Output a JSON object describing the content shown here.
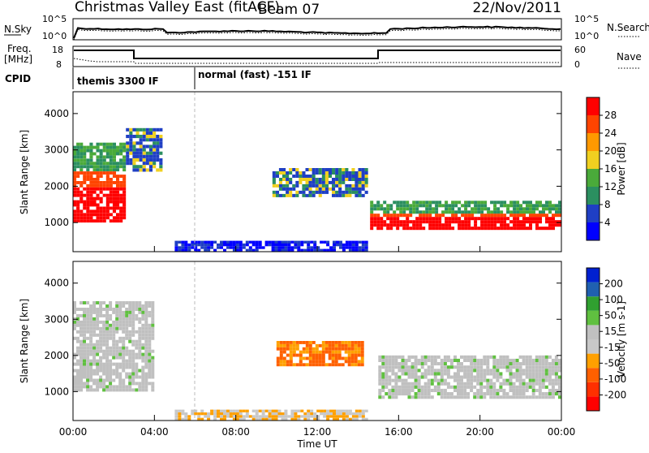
{
  "header": {
    "station": "Christmas Valley East (fitACF)",
    "beam": "Beam 07",
    "date": "22/Nov/2011"
  },
  "nsky_panel": {
    "left_label": "N.Sky",
    "left_ticks": [
      "10^5",
      "10^0"
    ],
    "right_label": "N.Search",
    "right_ticks": [
      "10^5",
      "10^0"
    ]
  },
  "freq_panel": {
    "left_label_1": "Freq.",
    "left_label_2": "[MHz]",
    "left_ticks": [
      "18",
      "8"
    ],
    "right_label": "Nave",
    "right_ticks": [
      "60",
      "0"
    ]
  },
  "cpid": {
    "label": "CPID",
    "segments": [
      {
        "text": "themis 3300 IF",
        "start_hour": 0.0
      },
      {
        "text": "normal (fast) -151 IF",
        "start_hour": 6.0
      }
    ]
  },
  "colors": {
    "power": [
      "#0000ff",
      "#1f3fc4",
      "#2b8f60",
      "#4aaa3a",
      "#f0d020",
      "#ff9900",
      "#ff4400",
      "#ff0000"
    ],
    "velocity": [
      "#0020d0",
      "#2060b0",
      "#30a030",
      "#60c040",
      "#c0c0c0",
      "#c8c8c8",
      "#ffa000",
      "#ff6000",
      "#ff3000",
      "#ff0000"
    ]
  },
  "chart_data": [
    {
      "type": "heatmap",
      "name": "power",
      "ylabel": "Slant Range [km]",
      "y_ticks": [
        "1000",
        "2000",
        "3000",
        "4000"
      ],
      "ylim": [
        200,
        4600
      ],
      "x_ticks": [
        "00:00",
        "04:00",
        "08:00",
        "12:00",
        "16:00",
        "20:00",
        "00:00"
      ],
      "xlim_hours": [
        0,
        24
      ],
      "colorbar": {
        "label": "Power [dB]",
        "ticks": [
          "4",
          "8",
          "12",
          "16",
          "20",
          "24",
          "28"
        ]
      },
      "features": [
        {
          "hours": [
            0.0,
            2.6
          ],
          "range_km": [
            1000,
            3200
          ],
          "level": "high"
        },
        {
          "hours": [
            2.6,
            4.4
          ],
          "range_km": [
            2400,
            3600
          ],
          "level": "medium"
        },
        {
          "hours": [
            9.8,
            14.5
          ],
          "range_km": [
            1700,
            2500
          ],
          "level": "medium"
        },
        {
          "hours": [
            14.6,
            24.0
          ],
          "range_km": [
            800,
            1600
          ],
          "level": "high"
        },
        {
          "hours": [
            5.0,
            14.5
          ],
          "range_km": [
            200,
            500
          ],
          "level": "low"
        }
      ]
    },
    {
      "type": "heatmap",
      "name": "velocity",
      "ylabel": "Slant Range [km]",
      "y_ticks": [
        "1000",
        "2000",
        "3000",
        "4000"
      ],
      "ylim": [
        200,
        4600
      ],
      "x_ticks": [
        "00:00",
        "04:00",
        "08:00",
        "12:00",
        "16:00",
        "20:00",
        "00:00"
      ],
      "xlim_hours": [
        0,
        24
      ],
      "xlabel": "Time UT",
      "colorbar": {
        "label": "Velocity [m s-1]",
        "ticks": [
          "200",
          "100",
          "50",
          "15",
          "-15",
          "-50",
          "-100",
          "-200"
        ]
      },
      "features": [
        {
          "hours": [
            0.0,
            4.0
          ],
          "range_km": [
            1000,
            3500
          ],
          "level": "grey"
        },
        {
          "hours": [
            10.0,
            14.3
          ],
          "range_km": [
            1700,
            2400
          ],
          "level": "negative"
        },
        {
          "hours": [
            15.0,
            24.0
          ],
          "range_km": [
            800,
            2000
          ],
          "level": "grey"
        },
        {
          "hours": [
            5.0,
            14.5
          ],
          "range_km": [
            200,
            500
          ],
          "level": "negative-small"
        }
      ]
    }
  ]
}
